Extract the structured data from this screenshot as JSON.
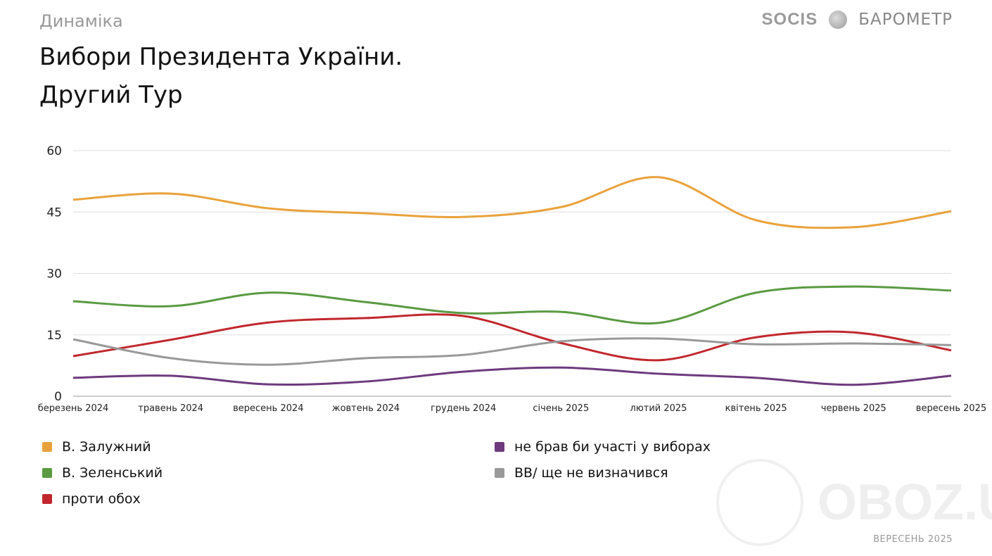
{
  "header": {
    "kicker": "Динаміка",
    "title_line1": "Вибори Президента України.",
    "title_line2": "Другий Тур"
  },
  "brand": {
    "logo": "SOCIS",
    "medal_icon": "medal-icon",
    "product": "БАРОМЕТР"
  },
  "footer": {
    "date": "ВЕРЕСЕНЬ 2025"
  },
  "watermark": {
    "text": "OBOZ.UA"
  },
  "chart_data": {
    "type": "line",
    "categories": [
      "березень 2024",
      "травень 2024",
      "вересень 2024",
      "жовтень 2024",
      "грудень 2024",
      "січень 2025",
      "лютий 2025",
      "квітень 2025",
      "червень 2025",
      "вересень 2025"
    ],
    "ylim": [
      0,
      60
    ],
    "yticks": [
      0,
      15,
      30,
      45,
      60
    ],
    "grid": true,
    "legend_position": "bottom",
    "series": [
      {
        "name": "В. Залужний",
        "color": "#E9A23B",
        "values": [
          48,
          49.5,
          45.9,
          44.7,
          43.8,
          46.2,
          53.5,
          43,
          41.3,
          45.2
        ]
      },
      {
        "name": "В. Зеленський",
        "color": "#5A9A42",
        "values": [
          23.2,
          22,
          25.3,
          23,
          20.3,
          20.6,
          17.9,
          25.3,
          26.8,
          25.8
        ]
      },
      {
        "name": "проти обох",
        "color": "#C1272D",
        "values": [
          9.8,
          13.8,
          18,
          19.1,
          19.6,
          13,
          8.8,
          14.4,
          15.6,
          11.2
        ]
      },
      {
        "name": "не брав би участі у виборах",
        "color": "#6E3A7E",
        "values": [
          4.5,
          5,
          2.9,
          3.6,
          6,
          7,
          5.5,
          4.5,
          2.8,
          5
        ]
      },
      {
        "name": "ВВ/ ще не визначився",
        "color": "#999999",
        "values": [
          13.9,
          9.3,
          7.7,
          9.3,
          10.1,
          13.4,
          14.1,
          12.7,
          12.9,
          12.5
        ]
      }
    ]
  }
}
